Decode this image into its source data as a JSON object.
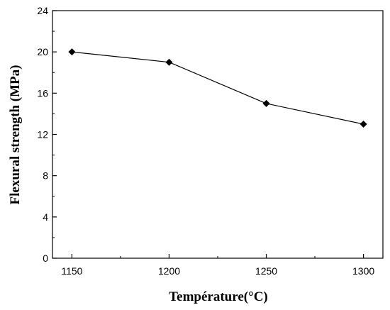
{
  "chart_data": {
    "type": "line",
    "xlabel": "Température(°C)",
    "ylabel": "Flexural strength (MPa)",
    "xlim": [
      1140,
      1310
    ],
    "ylim": [
      0,
      24
    ],
    "x_ticks": [
      1150,
      1200,
      1250,
      1300
    ],
    "y_ticks": [
      0,
      4,
      8,
      12,
      16,
      20,
      24
    ],
    "grid": false,
    "series": [
      {
        "x": [
          1150,
          1200,
          1250,
          1300
        ],
        "values": [
          20,
          19,
          15,
          13
        ],
        "marker": "diamond",
        "color": "#000000"
      }
    ]
  }
}
